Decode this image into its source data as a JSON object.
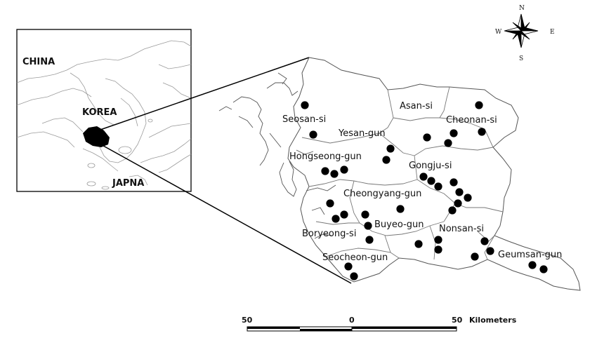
{
  "inset": {
    "labels": {
      "china": "CHINA",
      "korea": "KOREA",
      "japan": "JAPNA"
    }
  },
  "regions": [
    {
      "id": "seosan",
      "name": "Seosan-si"
    },
    {
      "id": "asan",
      "name": "Asan-si"
    },
    {
      "id": "cheonan",
      "name": "Cheonan-si"
    },
    {
      "id": "yesan",
      "name": "Yesan-gun"
    },
    {
      "id": "hongseong",
      "name": "Hongseong-gun"
    },
    {
      "id": "gongju",
      "name": "Gongju-si"
    },
    {
      "id": "cheongyang",
      "name": "Cheongyang-gun"
    },
    {
      "id": "buyeo",
      "name": "Buyeo-gun"
    },
    {
      "id": "boryeong",
      "name": "Boryeong-si"
    },
    {
      "id": "nonsan",
      "name": "Nonsan-si"
    },
    {
      "id": "seocheon",
      "name": "Seocheon-gun"
    },
    {
      "id": "geumsan",
      "name": "Geumsan-gun"
    }
  ],
  "compass": {
    "north": "N",
    "south": "S",
    "east": "E",
    "west": "W"
  },
  "scale_bar": {
    "left": "50",
    "center": "0",
    "right": "50",
    "unit": "Kilometers"
  },
  "colors": {
    "points": "#000000",
    "boundaries": "#666666",
    "background": "#ffffff"
  },
  "sample_site_count": 39
}
